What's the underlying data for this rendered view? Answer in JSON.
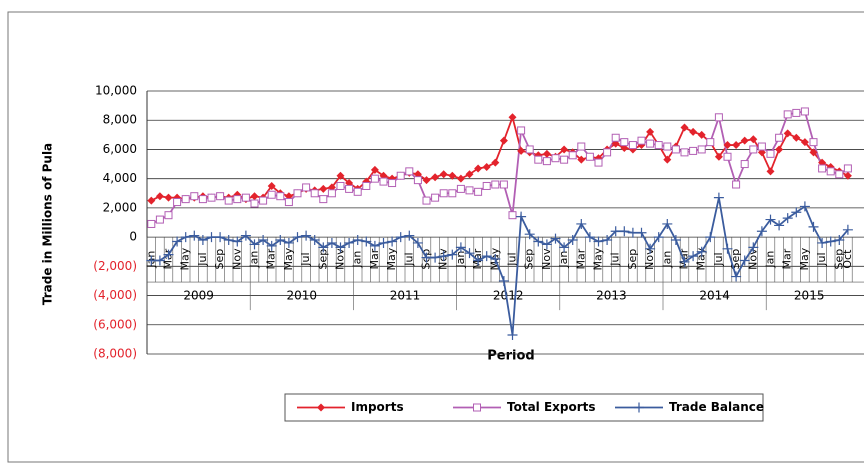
{
  "chart_data": {
    "type": "line",
    "y_label": "Trade in Millions of Pula",
    "x_label": "Period",
    "categories": [
      "Jan",
      null,
      "Mar",
      null,
      "May",
      null,
      "Jul",
      null,
      "Sep",
      null,
      "Nov",
      null,
      "Jan",
      null,
      "Mar",
      null,
      "May",
      null,
      "Jul",
      null,
      "Sep",
      null,
      "Nov",
      null,
      "Jan",
      null,
      "Mar",
      null,
      "May",
      null,
      "Jul",
      null,
      "Sep",
      null,
      "Nov",
      null,
      "Jan",
      null,
      "Mar",
      null,
      "May",
      null,
      "Jul",
      null,
      "Sep",
      null,
      "Nov",
      null,
      "Jan",
      null,
      "Mar",
      null,
      "May",
      null,
      "Jul",
      null,
      "Sep",
      null,
      "Nov",
      null,
      "Jan",
      null,
      "Mar",
      null,
      "May",
      null,
      "Jul",
      null,
      "Sep",
      null,
      "Nov",
      null,
      "Jan",
      null,
      "Mar",
      null,
      "May",
      null,
      "Jul",
      null,
      "Sep",
      "Oct"
    ],
    "years": [
      "2009",
      "2010",
      "2011",
      "2012",
      "2013",
      "2014",
      "2015"
    ],
    "series": [
      {
        "name": "Imports",
        "color": "#e3232c",
        "marker": "diamond",
        "values": [
          2500,
          2800,
          2700,
          2700,
          2600,
          2700,
          2800,
          2700,
          2800,
          2700,
          2900,
          2600,
          2800,
          2700,
          3500,
          3000,
          2800,
          3000,
          3300,
          3200,
          3300,
          3400,
          4200,
          3700,
          3300,
          3800,
          4600,
          4200,
          4000,
          4200,
          4400,
          4300,
          3900,
          4100,
          4300,
          4200,
          4000,
          4300,
          4700,
          4800,
          5100,
          6600,
          8200,
          5900,
          5800,
          5600,
          5700,
          5500,
          6000,
          5800,
          5300,
          5500,
          5400,
          6000,
          6400,
          6100,
          6000,
          6300,
          7200,
          6300,
          5300,
          6200,
          7500,
          7200,
          7000,
          6500,
          5500,
          6300,
          6300,
          6600,
          6700,
          5800,
          4500,
          6000,
          7100,
          6800,
          6500,
          5800,
          5100,
          4800,
          4500,
          4200
        ]
      },
      {
        "name": "Total Exports",
        "color": "#b25fb4",
        "marker": "square",
        "values": [
          900,
          1200,
          1500,
          2400,
          2600,
          2800,
          2600,
          2700,
          2800,
          2500,
          2600,
          2700,
          2300,
          2500,
          2900,
          2800,
          2400,
          3000,
          3400,
          3000,
          2600,
          3000,
          3500,
          3300,
          3100,
          3500,
          4000,
          3800,
          3700,
          4200,
          4500,
          3900,
          2500,
          2700,
          3000,
          3000,
          3300,
          3200,
          3100,
          3500,
          3600,
          3600,
          1500,
          7300,
          6000,
          5300,
          5200,
          5400,
          5300,
          5600,
          6200,
          5500,
          5100,
          5800,
          6800,
          6500,
          6300,
          6600,
          6400,
          6300,
          6200,
          6000,
          5800,
          5900,
          6000,
          6500,
          8200,
          5500,
          3600,
          5000,
          6000,
          6200,
          5700,
          6800,
          8400,
          8500,
          8600,
          6500,
          4700,
          4500,
          4300,
          4700
        ]
      },
      {
        "name": "Trade Balance",
        "color": "#3b5c9e",
        "marker": "plus",
        "values": [
          -1600,
          -1600,
          -1200,
          -300,
          0,
          100,
          -200,
          0,
          0,
          -200,
          -300,
          100,
          -500,
          -200,
          -600,
          -200,
          -400,
          0,
          100,
          -200,
          -700,
          -400,
          -700,
          -400,
          -200,
          -300,
          -600,
          -400,
          -300,
          0,
          100,
          -400,
          -1400,
          -1400,
          -1300,
          -1200,
          -700,
          -1100,
          -1600,
          -1300,
          -1500,
          -3000,
          -6700,
          1400,
          200,
          -300,
          -500,
          -100,
          -700,
          -200,
          900,
          0,
          -300,
          -200,
          400,
          400,
          300,
          300,
          -800,
          0,
          900,
          -200,
          -1700,
          -1300,
          -1000,
          0,
          2700,
          -800,
          -2700,
          -1600,
          -700,
          400,
          1200,
          800,
          1300,
          1700,
          2100,
          700,
          -400,
          -300,
          -200,
          500
        ]
      }
    ],
    "ylim": [
      -8000,
      10000
    ],
    "yticks": [
      {
        "value": -8000,
        "label": "(8,000)"
      },
      {
        "value": -6000,
        "label": "(6,000)"
      },
      {
        "value": -4000,
        "label": "(4,000)"
      },
      {
        "value": -2000,
        "label": "(2,000)"
      },
      0,
      {
        "value": 2000,
        "label": "2,000"
      },
      {
        "value": 4000,
        "label": "4,000"
      },
      {
        "value": 6000,
        "label": "6,000"
      },
      {
        "value": 8000,
        "label": "8,000"
      },
      {
        "value": 10000,
        "label": "10,000"
      }
    ],
    "negative_tick_color": "#e3232c",
    "grid": true,
    "legend": "bottom"
  }
}
